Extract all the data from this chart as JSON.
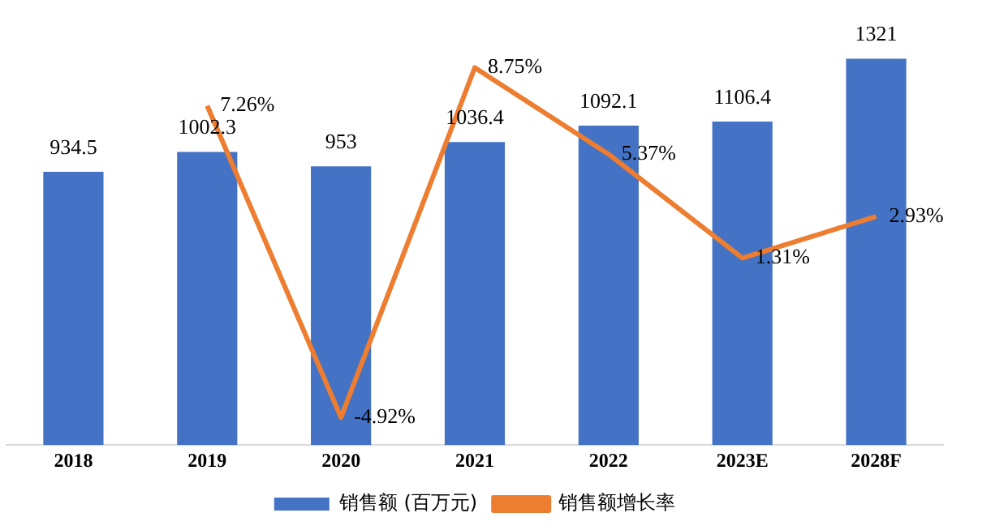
{
  "chart_data": {
    "type": "bar",
    "categories": [
      "2018",
      "2019",
      "2020",
      "2021",
      "2022",
      "2023E",
      "2028F"
    ],
    "series": [
      {
        "name": "销售额 (百万元)",
        "color": "#4472c4",
        "values": [
          934.5,
          1002.3,
          953,
          1036.4,
          1092.1,
          1106.4,
          1321
        ],
        "value_labels": [
          "934.5",
          "1002.3",
          "953",
          "1036.4",
          "1092.1",
          "1106.4",
          "1321"
        ]
      },
      {
        "name": "销售额增长率",
        "type": "line",
        "axis": "y2",
        "color": "#ed7d31",
        "values": [
          null,
          7.26,
          -4.92,
          8.75,
          5.37,
          1.31,
          2.93
        ],
        "value_labels": [
          null,
          "7.26%",
          "-4.92%",
          "8.75%",
          "5.37%",
          "1.31%",
          "2.93%"
        ]
      }
    ],
    "tick_labels": "x",
    "grid": false,
    "legend": "bottom",
    "marker": "none"
  }
}
